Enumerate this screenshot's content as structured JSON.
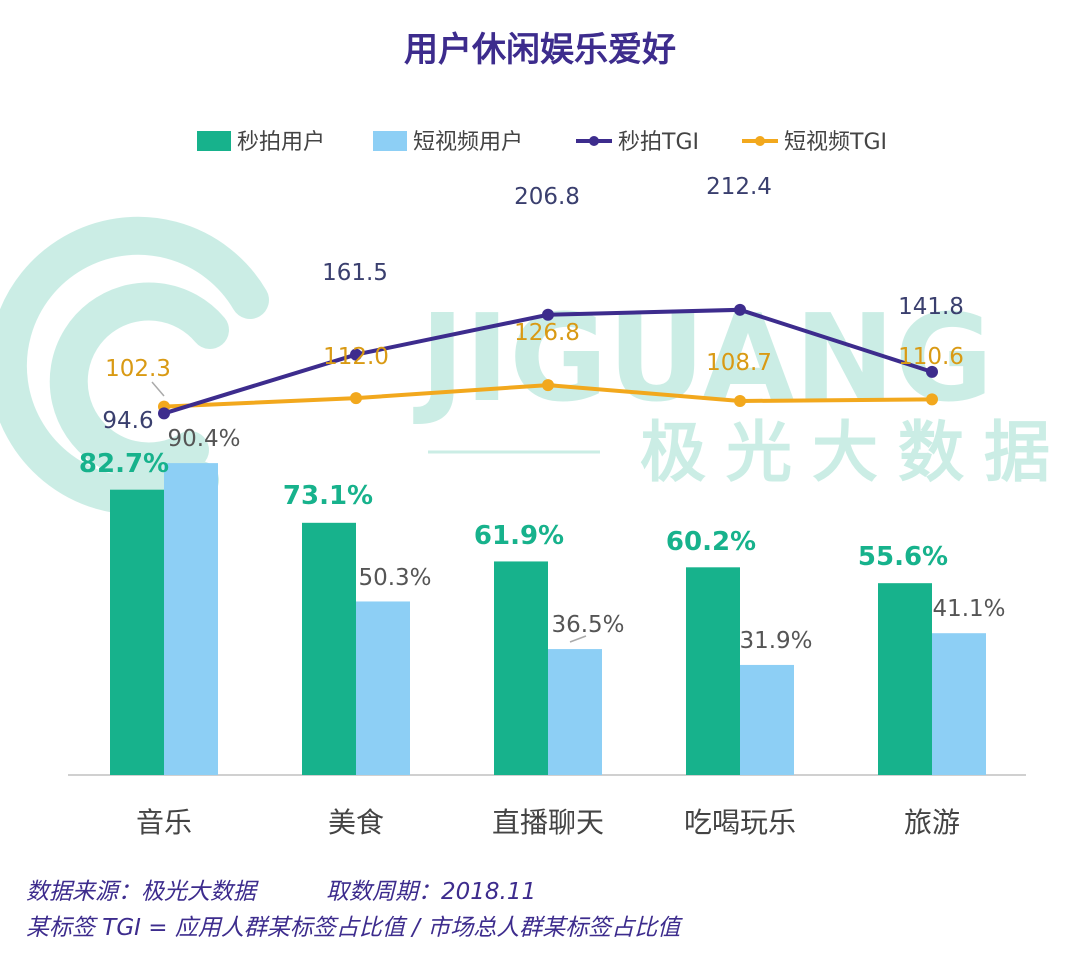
{
  "title": "用户休闲娱乐爱好",
  "watermark": {
    "brand": "JIGUANG",
    "sub": "极光大数据"
  },
  "colors": {
    "green": "#17b28c",
    "blue": "#8dcff5",
    "purple": "#3d2c8d",
    "orange": "#f2a81d"
  },
  "footer": {
    "source": "数据来源：极光大数据",
    "period": "取数周期：2018.11",
    "note": "某标签 TGI = 应用人群某标签占比值 / 市场总人群某标签占比值"
  },
  "chart_data": {
    "type": "bar",
    "categories": [
      "音乐",
      "美食",
      "直播聊天",
      "吃喝玩乐",
      "旅游"
    ],
    "legend_position": "top",
    "series": [
      {
        "name": "秒拍用户",
        "type": "bar",
        "values": [
          82.7,
          73.1,
          61.9,
          60.2,
          55.6
        ],
        "labels": [
          "82.7%",
          "73.1%",
          "61.9%",
          "60.2%",
          "55.6%"
        ]
      },
      {
        "name": "短视频用户",
        "type": "bar",
        "values": [
          90.4,
          50.3,
          36.5,
          31.9,
          41.1
        ],
        "labels": [
          "90.4%",
          "50.3%",
          "36.5%",
          "31.9%",
          "41.1%"
        ]
      },
      {
        "name": "秒拍TGI",
        "type": "line",
        "values": [
          94.6,
          161.5,
          206.8,
          212.4,
          141.8
        ],
        "labels": [
          "94.6",
          "161.5",
          "206.8",
          "212.4",
          "141.8"
        ]
      },
      {
        "name": "短视频TGI",
        "type": "line",
        "values": [
          102.3,
          112.0,
          126.8,
          108.7,
          110.6
        ],
        "labels": [
          "102.3",
          "112.0",
          "126.8",
          "108.7",
          "110.6"
        ]
      }
    ]
  }
}
